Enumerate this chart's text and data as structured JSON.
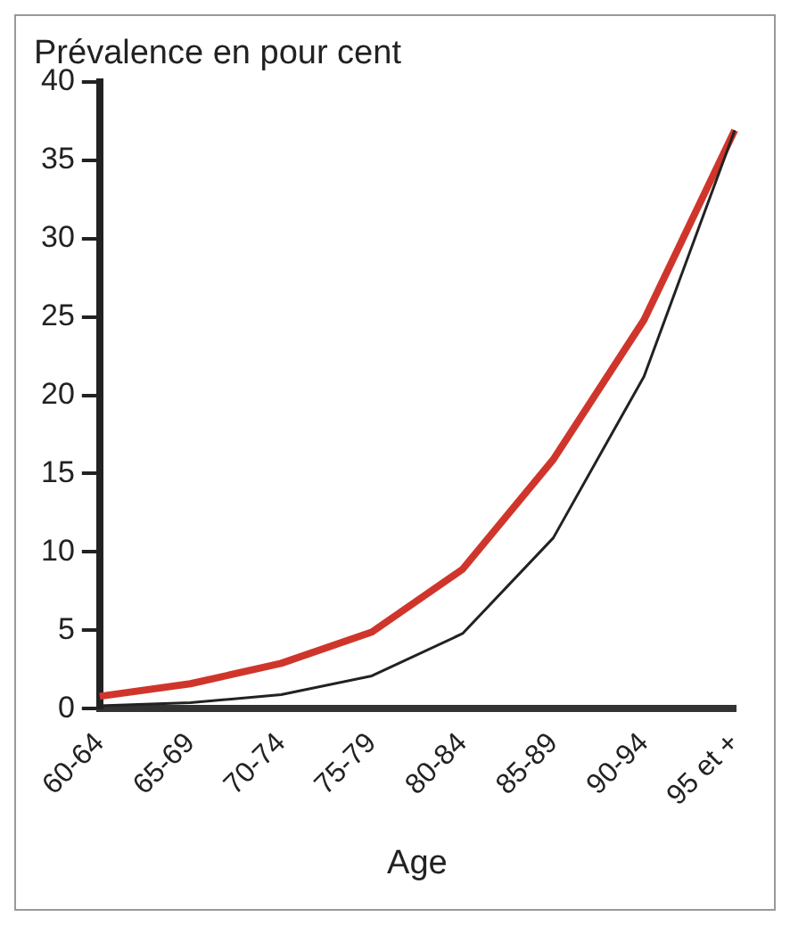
{
  "chart_data": {
    "type": "line",
    "title": "Prévalence en pour cent",
    "xlabel": "Age",
    "categories": [
      "60-64",
      "65-69",
      "70-74",
      "75-79",
      "80-84",
      "85-89",
      "90-94",
      "95 et +"
    ],
    "series": [
      {
        "color": "#d0352b",
        "values": [
          0.8,
          1.6,
          2.9,
          4.9,
          8.9,
          15.9,
          24.8,
          36.9
        ]
      },
      {
        "color": "#222222",
        "values": [
          0.2,
          0.4,
          0.9,
          2.1,
          4.8,
          10.9,
          21.2,
          36.9
        ]
      }
    ],
    "ylim": [
      0,
      40
    ],
    "yticks": [
      0,
      5,
      10,
      15,
      20,
      25,
      30,
      35,
      40
    ],
    "grid": false,
    "legend": false,
    "marker": "none",
    "line_style": "solid"
  }
}
